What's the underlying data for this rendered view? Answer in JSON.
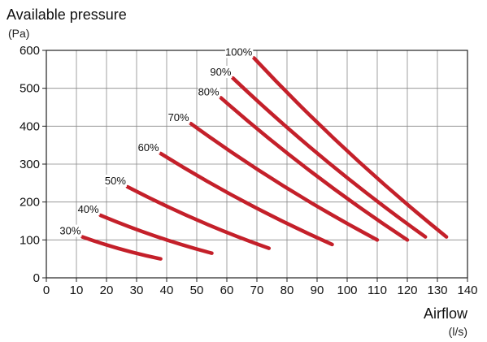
{
  "chart_data": {
    "type": "line",
    "ylabel": "Available pressure",
    "yunit": "(Pa)",
    "xlabel": "Airflow",
    "xunit": "(l/s)",
    "xlim": [
      0,
      140
    ],
    "ylim": [
      0,
      600
    ],
    "xticks": [
      0,
      10,
      20,
      30,
      40,
      50,
      60,
      70,
      80,
      90,
      100,
      110,
      120,
      130,
      140
    ],
    "yticks": [
      0,
      100,
      200,
      300,
      400,
      500,
      600
    ],
    "grid": true,
    "line_color": "#c4202a",
    "series": [
      {
        "name": "30%",
        "x": [
          12,
          38
        ],
        "y": [
          108,
          50
        ]
      },
      {
        "name": "40%",
        "x": [
          18,
          55
        ],
        "y": [
          165,
          65
        ]
      },
      {
        "name": "50%",
        "x": [
          27,
          74
        ],
        "y": [
          240,
          78
        ]
      },
      {
        "name": "60%",
        "x": [
          38,
          95
        ],
        "y": [
          328,
          88
        ]
      },
      {
        "name": "70%",
        "x": [
          48,
          110
        ],
        "y": [
          407,
          100
        ]
      },
      {
        "name": "80%",
        "x": [
          58,
          120
        ],
        "y": [
          475,
          100
        ]
      },
      {
        "name": "90%",
        "x": [
          62,
          126
        ],
        "y": [
          527,
          108
        ]
      },
      {
        "name": "100%",
        "x": [
          69,
          133
        ],
        "y": [
          580,
          108
        ]
      }
    ]
  }
}
